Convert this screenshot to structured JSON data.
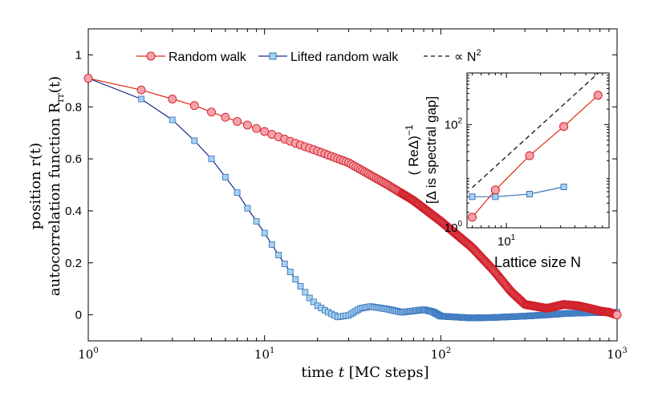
{
  "chart_data": [
    {
      "type": "line",
      "xscale": "log",
      "xlim": [
        1,
        1000
      ],
      "ylim": [
        -0.1,
        1.1
      ],
      "xlabel_prefix": "time ",
      "xlabel_var": "t",
      "xlabel_suffix": " [MC steps]",
      "ylabel_line1": "position r(t)",
      "ylabel_line2": "autocorrelation function R",
      "ylabel_line2_sub": "rr",
      "ylabel_line2_tail": "(t)",
      "xticks": [
        {
          "value": 1,
          "base": "10",
          "exp": "0"
        },
        {
          "value": 10,
          "base": "10",
          "exp": "1"
        },
        {
          "value": 100,
          "base": "10",
          "exp": "2"
        },
        {
          "value": 1000,
          "base": "10",
          "exp": "3"
        }
      ],
      "yticks": [
        {
          "value": 0,
          "label": "0"
        },
        {
          "value": 0.2,
          "label": "0.2"
        },
        {
          "value": 0.4,
          "label": "0.4"
        },
        {
          "value": 0.6,
          "label": "0.6"
        },
        {
          "value": 0.8,
          "label": "0.8"
        },
        {
          "value": 1,
          "label": "1"
        }
      ],
      "legend": {
        "placement": "top-center",
        "entries": [
          {
            "label": "Random walk",
            "series": "random_walk"
          },
          {
            "label": "Lifted random walk",
            "series": "lifted_random_walk"
          },
          {
            "label": "∝ N",
            "exp": "2",
            "series": "scaling"
          }
        ]
      },
      "series": [
        {
          "name": "Random walk",
          "id": "random_walk",
          "line_color": "#e02a10",
          "marker": "circle",
          "marker_fill": "#f7a1a8",
          "marker_edge": "#d0202a",
          "points": [
            [
              1,
              0.91
            ],
            [
              2,
              0.865
            ],
            [
              3,
              0.83
            ],
            [
              4,
              0.805
            ],
            [
              5,
              0.78
            ],
            [
              6,
              0.76
            ],
            [
              8,
              0.73
            ],
            [
              10,
              0.705
            ],
            [
              15,
              0.66
            ],
            [
              20,
              0.63
            ],
            [
              30,
              0.585
            ],
            [
              50,
              0.5
            ],
            [
              70,
              0.44
            ],
            [
              100,
              0.36
            ],
            [
              150,
              0.26
            ],
            [
              200,
              0.17
            ],
            [
              250,
              0.09
            ],
            [
              300,
              0.04
            ],
            [
              400,
              0.025
            ],
            [
              500,
              0.04
            ],
            [
              600,
              0.035
            ],
            [
              700,
              0.025
            ],
            [
              800,
              0.015
            ],
            [
              900,
              0.01
            ],
            [
              1000,
              0.0
            ]
          ],
          "marker_steps": "every integer t up to 60"
        },
        {
          "name": "Lifted random walk",
          "id": "lifted_random_walk",
          "line_color": "#1a2a8a",
          "marker": "square",
          "marker_fill": "#a6d2f0",
          "marker_edge": "#3d78c0",
          "points": [
            [
              1,
              0.91
            ],
            [
              2,
              0.83
            ],
            [
              3,
              0.75
            ],
            [
              4,
              0.67
            ],
            [
              5,
              0.6
            ],
            [
              6,
              0.53
            ],
            [
              7,
              0.47
            ],
            [
              8,
              0.41
            ],
            [
              9,
              0.36
            ],
            [
              10,
              0.315
            ],
            [
              12,
              0.23
            ],
            [
              14,
              0.165
            ],
            [
              16,
              0.11
            ],
            [
              18,
              0.065
            ],
            [
              20,
              0.035
            ],
            [
              23,
              0.01
            ],
            [
              26,
              -0.008
            ],
            [
              30,
              -0.002
            ],
            [
              35,
              0.025
            ],
            [
              40,
              0.032
            ],
            [
              50,
              0.022
            ],
            [
              60,
              0.01
            ],
            [
              70,
              0.015
            ],
            [
              80,
              0.02
            ],
            [
              90,
              0.012
            ],
            [
              100,
              -0.005
            ],
            [
              150,
              -0.012
            ],
            [
              200,
              -0.01
            ],
            [
              300,
              -0.005
            ],
            [
              400,
              0.0
            ],
            [
              500,
              0.005
            ],
            [
              700,
              0.008
            ],
            [
              1000,
              0.01
            ]
          ],
          "marker_steps": "every integer t up to 100"
        }
      ]
    },
    {
      "type": "line",
      "inset": true,
      "xscale": "log",
      "yscale": "log",
      "xlim": [
        4.5,
        80
      ],
      "ylim": [
        1,
        1000
      ],
      "xlabel": "Lattice size N",
      "ylabel_line1_prefix": "( ReΔ)",
      "ylabel_line1_exp": "−1",
      "ylabel_line2": "[Δ is spectral gap]",
      "xticks": [
        {
          "value": 10,
          "base": "10",
          "exp": "1"
        }
      ],
      "yticks": [
        {
          "value": 1,
          "base": "10",
          "exp": "0"
        },
        {
          "value": 100,
          "base": "10",
          "exp": "2"
        }
      ],
      "series": [
        {
          "name": "Random walk",
          "id": "random_walk",
          "line_color": "#e02a10",
          "marker": "circle",
          "marker_fill": "#f7a1a8",
          "marker_edge": "#d0202a",
          "points": [
            [
              5,
              1.6
            ],
            [
              8,
              5.4
            ],
            [
              16,
              25
            ],
            [
              32,
              92
            ],
            [
              64,
              370
            ]
          ]
        },
        {
          "name": "Lifted random walk",
          "id": "lifted_random_walk",
          "line_color": "#3d78c0",
          "marker": "square",
          "marker_fill": "#a6d2f0",
          "marker_edge": "#3d78c0",
          "points": [
            [
              5,
              4.0
            ],
            [
              8,
              4.0
            ],
            [
              16,
              4.5
            ],
            [
              32,
              6.2
            ]
          ]
        },
        {
          "name": "∝ N²",
          "id": "scaling",
          "line_color": "#111111",
          "dashed": true,
          "points": [
            [
              5,
              6.0
            ],
            [
              64,
              984
            ]
          ]
        }
      ]
    }
  ]
}
